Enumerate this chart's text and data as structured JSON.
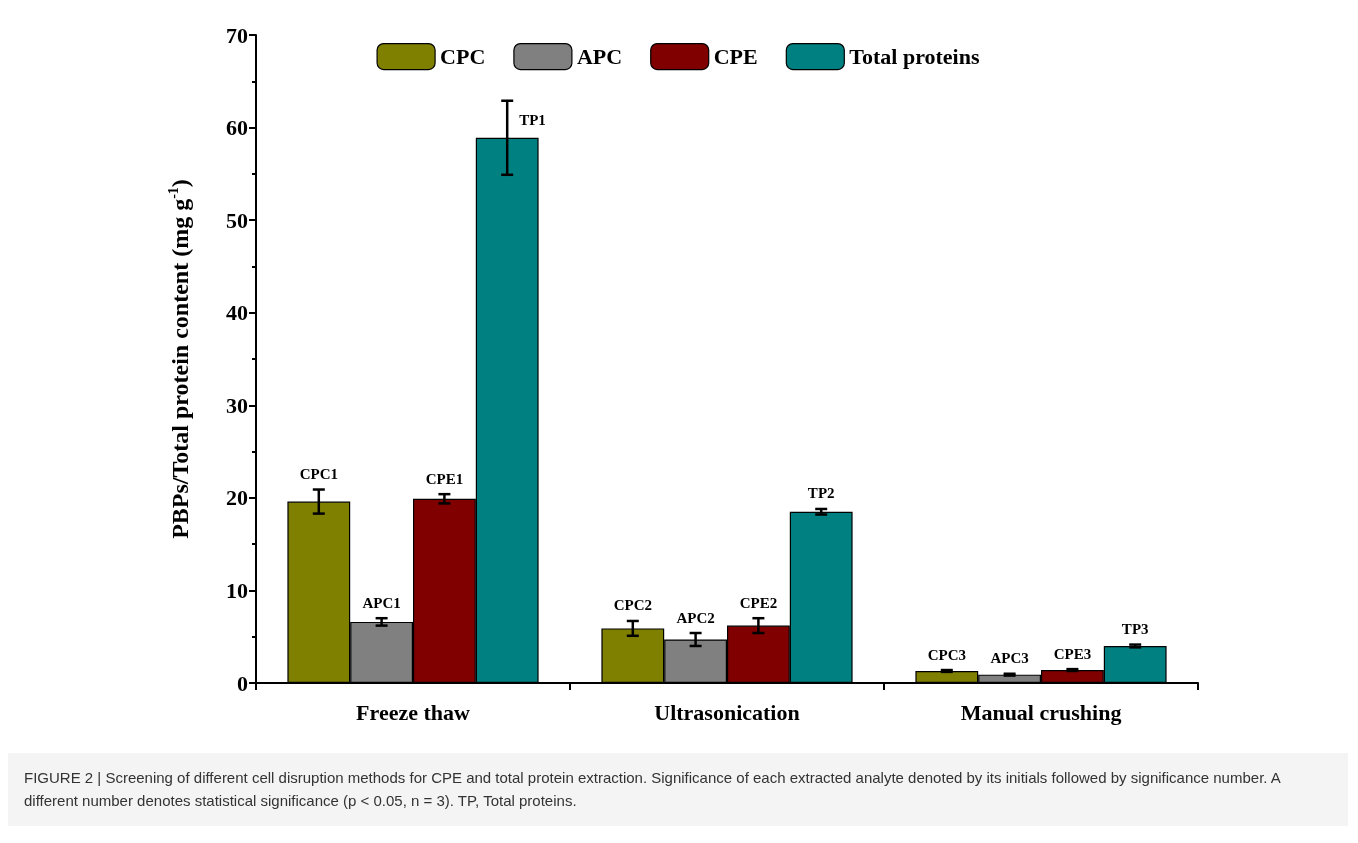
{
  "chart_data": {
    "type": "bar",
    "ylabel": "PBPs/Total protein content (mg g$^{-1}$)",
    "categories": [
      "Freeze thaw",
      "Ultrasonication",
      "Manual crushing"
    ],
    "series": [
      {
        "name": "CPC",
        "color": "#808000",
        "values": [
          19.6,
          5.9,
          1.3
        ],
        "errors": [
          1.3,
          0.8,
          0.1
        ],
        "value_labels": [
          "CPC1",
          "CPC2",
          "CPC3"
        ]
      },
      {
        "name": "APC",
        "color": "#808080",
        "values": [
          6.6,
          4.7,
          0.9
        ],
        "errors": [
          0.4,
          0.7,
          0.1
        ],
        "value_labels": [
          "APC1",
          "APC2",
          "APC3"
        ]
      },
      {
        "name": "CPE",
        "color": "#800000",
        "values": [
          19.9,
          6.2,
          1.4
        ],
        "errors": [
          0.5,
          0.8,
          0.1
        ],
        "value_labels": [
          "CPE1",
          "CPE2",
          "CPE3"
        ]
      },
      {
        "name": "Total proteins",
        "color": "#008080",
        "values": [
          58.9,
          18.5,
          4.0
        ],
        "errors": [
          4.0,
          0.3,
          0.15
        ],
        "value_labels": [
          "TP1",
          "TP2",
          "TP3"
        ]
      }
    ],
    "ylim": [
      0,
      70
    ],
    "yticks": [
      0,
      10,
      20,
      30,
      40,
      50,
      60,
      70
    ],
    "grid": false,
    "legend": "top",
    "annotations": [
      "FIGURE 2 | Screening of different cell disruption methods for CPE and total protein extraction. Significance of each extracted analyte denoted by its initials followed by significance number. A different number denotes statistical significance (p < 0.05, n = 3). TP, Total proteins."
    ]
  }
}
